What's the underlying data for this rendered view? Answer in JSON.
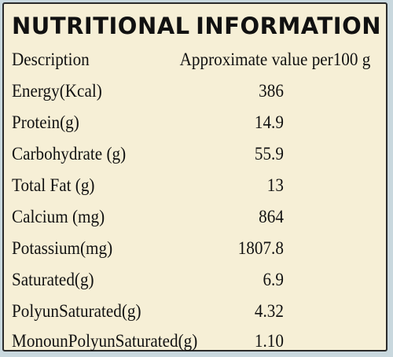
{
  "title": {
    "word1": "NUTRITIONAL",
    "word2": "INFORMATION"
  },
  "header": {
    "description": "Description",
    "value": "Approximate value per100 g"
  },
  "rows": [
    {
      "label": "Energy(Kcal)",
      "value": "386"
    },
    {
      "label": "Protein(g)",
      "value": "14.9"
    },
    {
      "label": "Carbohydrate (g)",
      "value": "55.9"
    },
    {
      "label": "Total Fat (g)",
      "value": "13"
    },
    {
      "label": "Calcium (mg)",
      "value": "864"
    },
    {
      "label": "Potassium(mg)",
      "value": "1807.8"
    },
    {
      "label": "Saturated(g)",
      "value": "6.9"
    },
    {
      "label": "PolyunSaturated(g)",
      "value": "4.32"
    },
    {
      "label": "MonounPolyunSaturated(g)",
      "value": "1.10"
    }
  ]
}
